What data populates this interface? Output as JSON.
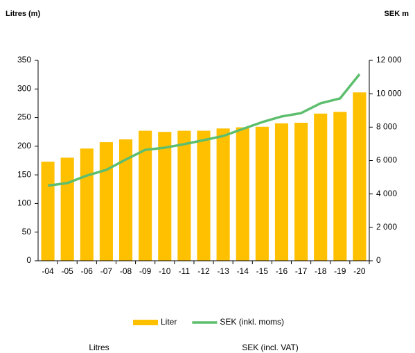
{
  "chart_data": {
    "type": "bar",
    "y_label": "Litres (m)",
    "y2_label": "SEK m",
    "categories": [
      "-04",
      "-05",
      "-06",
      "-07",
      "-08",
      "-09",
      "-10",
      "-11",
      "-12",
      "-13",
      "-14",
      "-15",
      "-16",
      "-17",
      "-18",
      "-19",
      "-20"
    ],
    "series": [
      {
        "name": "Liter",
        "type": "bar",
        "color": "#FFC000",
        "values": [
          173,
          180,
          196,
          207,
          212,
          227,
          225,
          227,
          227,
          231,
          233,
          234,
          240,
          241,
          257,
          260,
          294
        ]
      },
      {
        "name": "SEK (inkl. moms)",
        "type": "line",
        "axis": "y2",
        "color": "#5DBE6E",
        "values": [
          4500,
          4650,
          5100,
          5440,
          6060,
          6640,
          6770,
          6980,
          7220,
          7470,
          7890,
          8300,
          8640,
          8840,
          9430,
          9720,
          11170
        ]
      }
    ],
    "ylim": [
      0,
      350
    ],
    "yticks": [
      0,
      50,
      100,
      150,
      200,
      250,
      300,
      350
    ],
    "y2lim": [
      0,
      12000
    ],
    "y2ticks": [
      0,
      {
        "value": 2000,
        "label": "2 000"
      },
      {
        "value": 4000,
        "label": "4 000"
      },
      {
        "value": 6000,
        "label": "6 000"
      },
      {
        "value": 8000,
        "label": "8 000"
      },
      {
        "value": 10000,
        "label": "10 000"
      },
      {
        "value": 12000,
        "label": "12 000"
      }
    ],
    "grid": false,
    "legend": "bottom",
    "notes": [
      "Litres",
      "SEK (incl. VAT)"
    ]
  }
}
